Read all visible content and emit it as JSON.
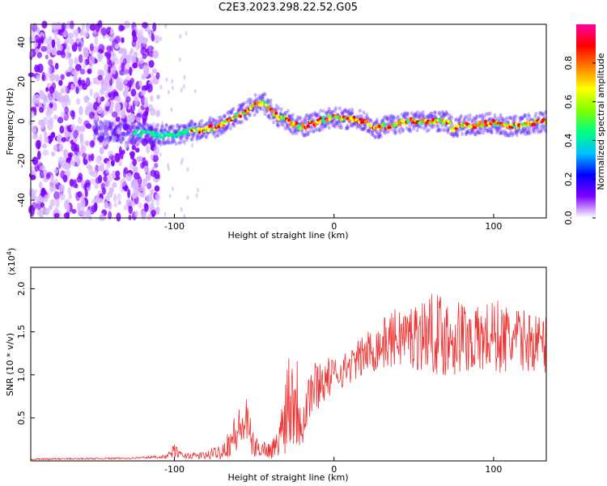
{
  "chart_data": [
    {
      "type": "heatmap",
      "title": "C2E3.2023.298.22.52.G05",
      "xlabel": "Height of straight line (km)",
      "ylabel": "Frequency (Hz)",
      "xlim": [
        -190,
        133
      ],
      "ylim": [
        -49,
        49
      ],
      "xticks": [
        -100,
        0,
        100
      ],
      "yticks": [
        -40,
        -20,
        0,
        20,
        40
      ],
      "colorbar": {
        "label": "Normalized spectral amplitude",
        "range": [
          0.0,
          1.0
        ],
        "ticks": [
          "0.0",
          "0.2",
          "0.4",
          "0.6",
          "0.8"
        ],
        "colors": [
          "#ffffff",
          "#7f00ff",
          "#0000ff",
          "#00c0ff",
          "#00ff80",
          "#80ff00",
          "#ffff00",
          "#ff8000",
          "#ff0000",
          "#ff00a0"
        ]
      },
      "ridge": {
        "x": [
          -140,
          -130,
          -120,
          -110,
          -100,
          -90,
          -80,
          -70,
          -60,
          -55,
          -50,
          -45,
          -40,
          -35,
          -30,
          -25,
          -20,
          -10,
          0,
          10,
          20,
          25,
          30,
          40,
          50,
          60,
          70,
          75,
          80,
          90,
          100,
          110,
          120,
          133
        ],
        "y": [
          -5,
          -6,
          -6,
          -7,
          -7,
          -5,
          -4,
          -2,
          3,
          5,
          8,
          10,
          6,
          2,
          1,
          -2,
          -3,
          0,
          2,
          1,
          0,
          -4,
          -3,
          -1,
          0,
          0,
          0,
          -4,
          -2,
          -2,
          -1,
          -3,
          -2,
          0
        ]
      }
    },
    {
      "type": "line",
      "xlabel": "Height of straight line (km)",
      "ylabel": "SNR (10 * v/v)",
      "yscale_label": "(x10",
      "yscale_exp": "4",
      "yscale_close": ")",
      "xlim": [
        -190,
        133
      ],
      "ylim": [
        0,
        2.25
      ],
      "xticks": [
        -100,
        0,
        100
      ],
      "yticks": [
        "0.5",
        "1.0",
        "1.5",
        "2.0"
      ],
      "color": "#ee3333",
      "envelope": {
        "x": [
          -190,
          -130,
          -105,
          -100,
          -95,
          -80,
          -70,
          -62,
          -55,
          -50,
          -45,
          -40,
          -35,
          -28,
          -25,
          -20,
          -15,
          -10,
          0,
          10,
          20,
          30,
          40,
          50,
          60,
          70,
          80,
          90,
          100,
          110,
          120,
          133
        ],
        "y": [
          0.02,
          0.03,
          0.05,
          0.12,
          0.06,
          0.06,
          0.12,
          0.3,
          0.45,
          0.15,
          0.15,
          0.12,
          0.2,
          0.8,
          0.8,
          0.5,
          0.8,
          0.9,
          1.0,
          1.1,
          1.25,
          1.35,
          1.45,
          1.45,
          1.5,
          1.45,
          1.45,
          1.4,
          1.45,
          1.4,
          1.4,
          1.35
        ],
        "noise": [
          0.01,
          0.01,
          0.02,
          0.08,
          0.03,
          0.05,
          0.1,
          0.25,
          0.3,
          0.12,
          0.1,
          0.1,
          0.15,
          0.7,
          0.7,
          0.4,
          0.35,
          0.3,
          0.2,
          0.2,
          0.25,
          0.3,
          0.35,
          0.4,
          0.45,
          0.5,
          0.45,
          0.4,
          0.45,
          0.4,
          0.35,
          0.35
        ]
      }
    }
  ]
}
